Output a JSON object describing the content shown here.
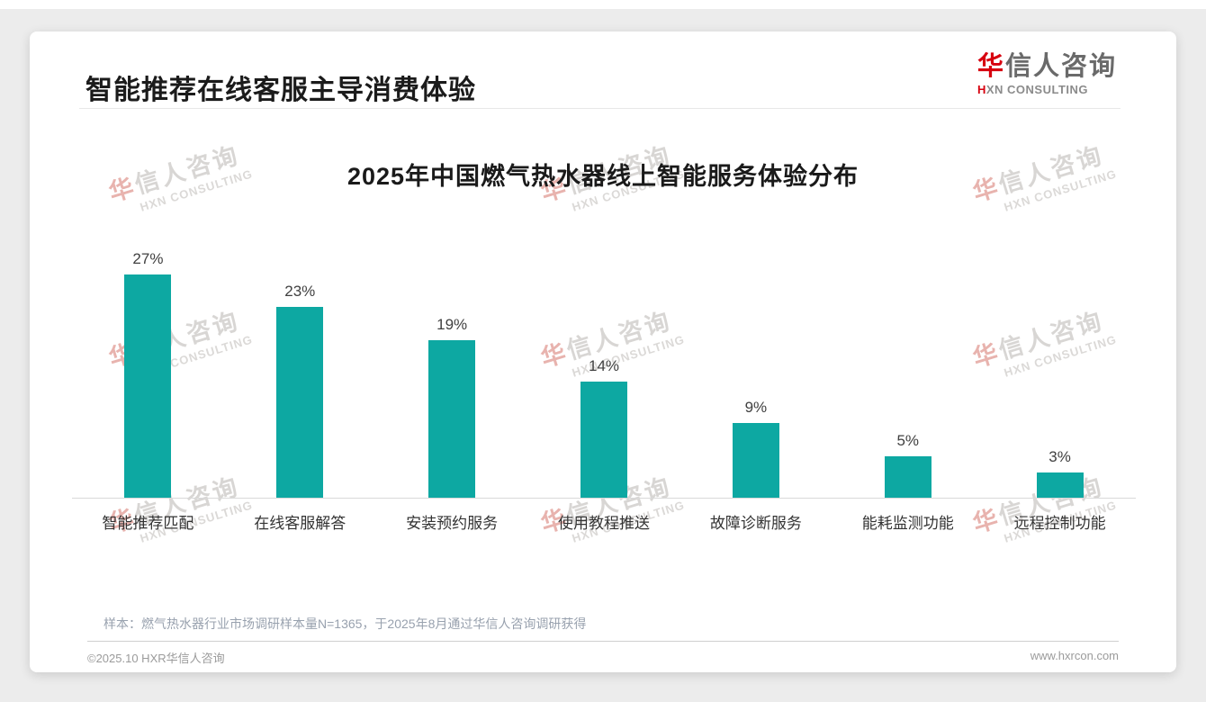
{
  "slide": {
    "header_title": "智能推荐在线客服主导消费体验"
  },
  "logo": {
    "cn_first": "华",
    "cn_rest": "信人咨询",
    "sub_first": "H",
    "sub_rest": "XN CONSULTING",
    "accent_color": "#d7000f"
  },
  "chart_data": {
    "type": "bar",
    "title": "2025年中国燃气热水器线上智能服务体验分布",
    "categories": [
      "智能推荐匹配",
      "在线客服解答",
      "安装预约服务",
      "使用教程推送",
      "故障诊断服务",
      "能耗监测功能",
      "远程控制功能"
    ],
    "values": [
      27,
      23,
      19,
      14,
      9,
      5,
      3
    ],
    "unit": "%",
    "bar_color": "#0da8a2",
    "value_label_color": "#404040",
    "xlabel": "",
    "ylabel": "",
    "ylim": [
      0,
      30
    ],
    "grid": false,
    "legend": false
  },
  "note": "样本：燃气热水器行业市场调研样本量N=1365，于2025年8月通过华信人咨询调研获得",
  "footer": {
    "left": "©2025.10 HXR华信人咨询",
    "right": "www.hxrcon.com"
  },
  "watermark": {
    "cn_first": "华",
    "cn_rest": "信人咨询",
    "sub": "HXN CONSULTING"
  }
}
